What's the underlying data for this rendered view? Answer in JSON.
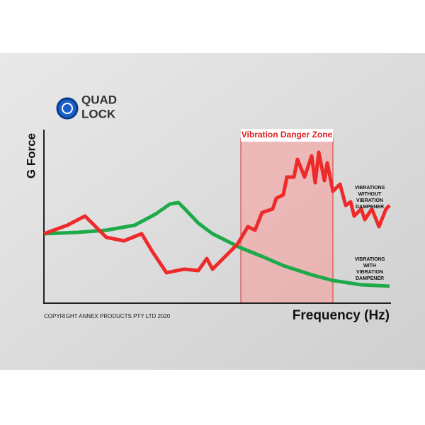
{
  "logo": {
    "line1": "QUAD",
    "line2": "LOCK"
  },
  "axes": {
    "y_label": "G Force",
    "x_label": "Frequency (Hz)"
  },
  "zone": {
    "label": "Vibration Danger Zone"
  },
  "annotations": {
    "without": [
      "VIBRATIONS",
      "WITHOUT",
      "VIBRATION",
      "DAMPENER"
    ],
    "with": [
      "VIBRATIONS",
      "WITH",
      "VIBRATION",
      "DAMPENER"
    ]
  },
  "copyright": "COPYRIGHT ANNEX PRODUCTS PTY LTD 2020"
}
